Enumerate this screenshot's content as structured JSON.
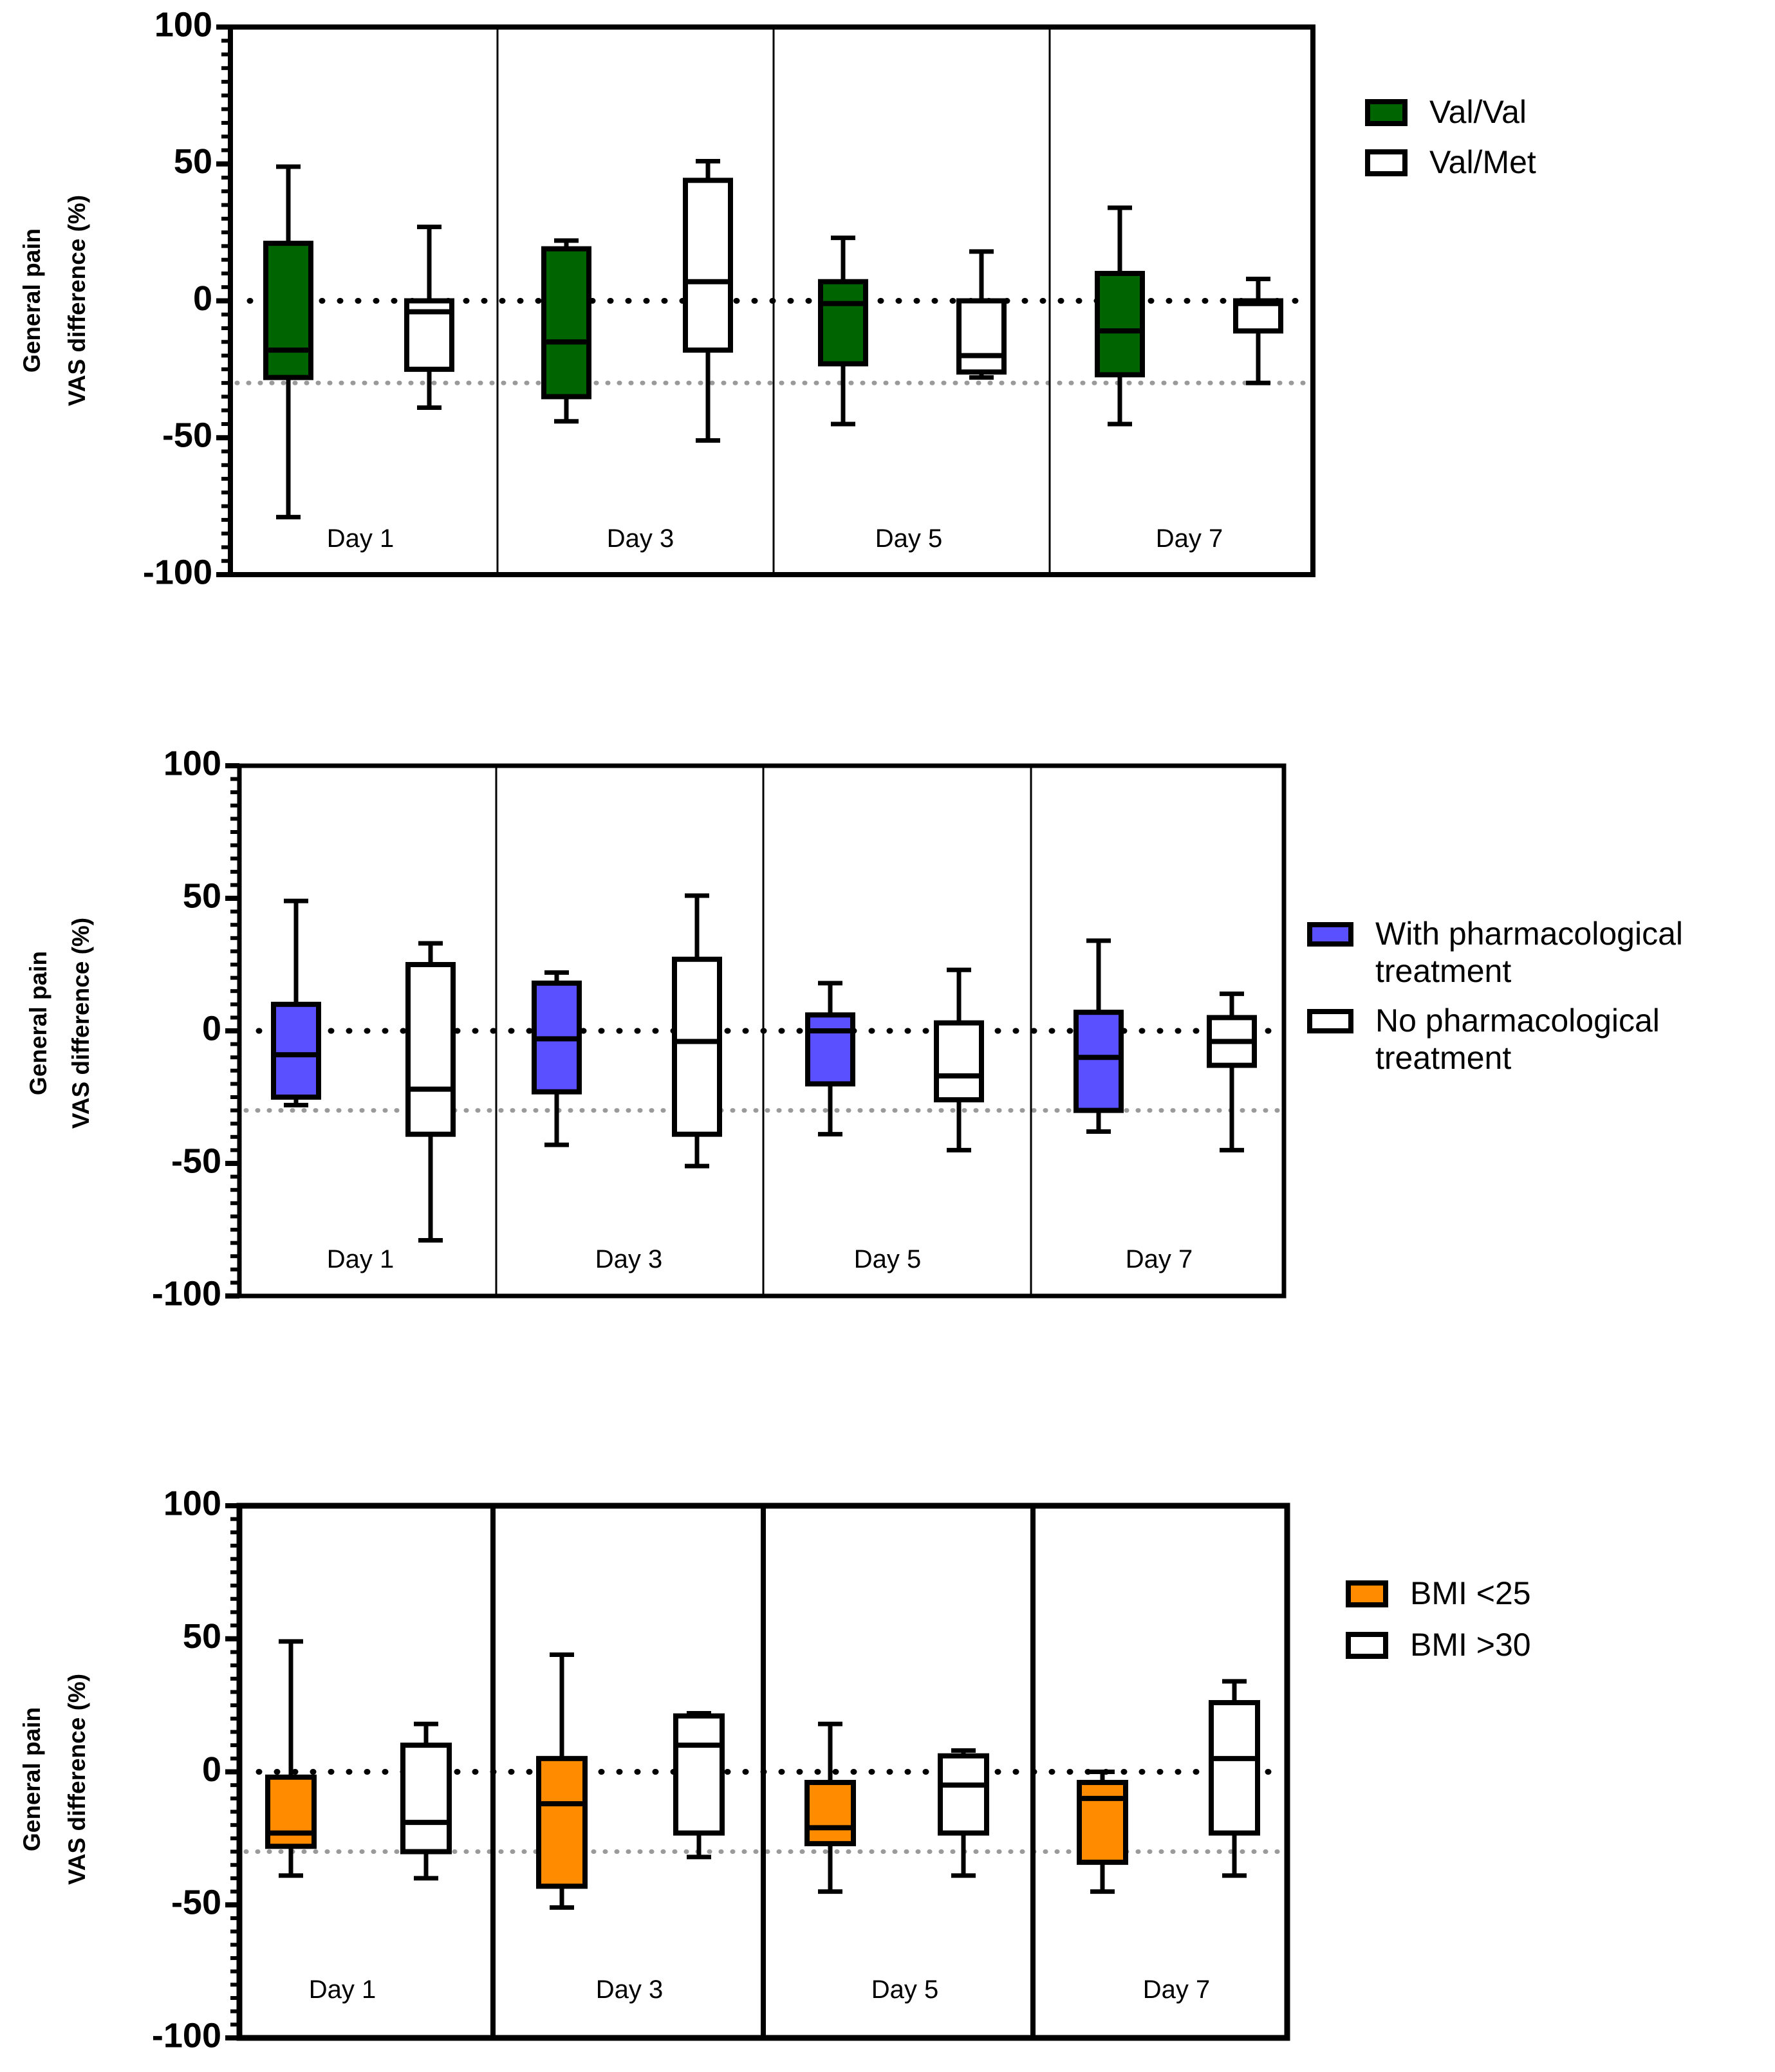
{
  "chart_data": [
    {
      "type": "boxplot",
      "ylabel_lines": [
        "General pain",
        "VAS difference (%)"
      ],
      "ylim": [
        -100,
        100
      ],
      "yticks": [
        100,
        50,
        0,
        -50,
        -100
      ],
      "reference_lines": [
        0,
        -30
      ],
      "categories": [
        "Day 1",
        "Day 3",
        "Day 5",
        "Day 7"
      ],
      "legend": [
        {
          "lines": [
            "Val/Val"
          ],
          "color": "#006400"
        },
        {
          "lines": [
            "Val/Met"
          ],
          "color": "#ffffff"
        }
      ],
      "series": [
        {
          "name": "Val/Val",
          "color": "#006400",
          "boxes": [
            {
              "min": -79,
              "q1": -28,
              "median": -18,
              "q3": 21,
              "max": 49
            },
            {
              "min": -44,
              "q1": -35,
              "median": -15,
              "q3": 19,
              "max": 22
            },
            {
              "min": -45,
              "q1": -23,
              "median": -1,
              "q3": 7,
              "max": 23
            },
            {
              "min": -45,
              "q1": -27,
              "median": -11,
              "q3": 10,
              "max": 34
            }
          ]
        },
        {
          "name": "Val/Met",
          "color": "#ffffff",
          "boxes": [
            {
              "min": -39,
              "q1": -25,
              "median": -4,
              "q3": 0,
              "max": 27
            },
            {
              "min": -51,
              "q1": -18,
              "median": 7,
              "q3": 44,
              "max": 51
            },
            {
              "min": -28,
              "q1": -26,
              "median": -20,
              "q3": 0,
              "max": 18
            },
            {
              "min": -30,
              "q1": -11,
              "median": -1,
              "q3": 0,
              "max": 8
            }
          ]
        }
      ]
    },
    {
      "type": "boxplot",
      "ylabel_lines": [
        "General pain",
        "VAS difference (%)"
      ],
      "ylim": [
        -100,
        100
      ],
      "yticks": [
        100,
        50,
        0,
        -50,
        -100
      ],
      "reference_lines": [
        0,
        -30
      ],
      "categories": [
        "Day 1",
        "Day 3",
        "Day 5",
        "Day 7"
      ],
      "legend": [
        {
          "lines": [
            "With pharmacological",
            "treatment"
          ],
          "color": "#5b50ff"
        },
        {
          "lines": [
            "No pharmacological",
            "treatment"
          ],
          "color": "#ffffff"
        }
      ],
      "series": [
        {
          "name": "With pharmacological treatment",
          "color": "#5b50ff",
          "boxes": [
            {
              "min": -28,
              "q1": -25,
              "median": -9,
              "q3": 10,
              "max": 49
            },
            {
              "min": -43,
              "q1": -23,
              "median": -3,
              "q3": 18,
              "max": 22
            },
            {
              "min": -39,
              "q1": -20,
              "median": 0,
              "q3": 6,
              "max": 18
            },
            {
              "min": -38,
              "q1": -30,
              "median": -10,
              "q3": 7,
              "max": 34
            }
          ]
        },
        {
          "name": "No pharmacological treatment",
          "color": "#ffffff",
          "boxes": [
            {
              "min": -79,
              "q1": -39,
              "median": -22,
              "q3": 25,
              "max": 33
            },
            {
              "min": -51,
              "q1": -39,
              "median": -4,
              "q3": 27,
              "max": 51
            },
            {
              "min": -45,
              "q1": -26,
              "median": -17,
              "q3": 3,
              "max": 23
            },
            {
              "min": -45,
              "q1": -13,
              "median": -4,
              "q3": 5,
              "max": 14
            }
          ]
        }
      ]
    },
    {
      "type": "boxplot",
      "ylabel_lines": [
        "General pain",
        "VAS difference (%)"
      ],
      "ylim": [
        -100,
        100
      ],
      "yticks": [
        100,
        50,
        0,
        -50,
        -100
      ],
      "reference_lines": [
        0,
        -30
      ],
      "categories": [
        "Day 1",
        "Day 3",
        "Day 5",
        "Day 7"
      ],
      "legend": [
        {
          "lines": [
            "BMI <25"
          ],
          "color": "#ff8c00"
        },
        {
          "lines": [
            "BMI >30"
          ],
          "color": "#ffffff"
        }
      ],
      "series": [
        {
          "name": "BMI <25",
          "color": "#ff8c00",
          "boxes": [
            {
              "min": -39,
              "q1": -28,
              "median": -23,
              "q3": -2,
              "max": 49
            },
            {
              "min": -51,
              "q1": -43,
              "median": -12,
              "q3": 5,
              "max": 44
            },
            {
              "min": -45,
              "q1": -27,
              "median": -21,
              "q3": -4,
              "max": 18
            },
            {
              "min": -45,
              "q1": -34,
              "median": -10,
              "q3": -4,
              "max": 0
            }
          ]
        },
        {
          "name": "BMI >30",
          "color": "#ffffff",
          "boxes": [
            {
              "min": -40,
              "q1": -30,
              "median": -19,
              "q3": 10,
              "max": 18
            },
            {
              "min": -32,
              "q1": -23,
              "median": 10,
              "q3": 21,
              "max": 22
            },
            {
              "min": -39,
              "q1": -23,
              "median": -5,
              "q3": 6,
              "max": 8
            },
            {
              "min": -39,
              "q1": -23,
              "median": 5,
              "q3": 26,
              "max": 34
            }
          ]
        }
      ]
    }
  ]
}
